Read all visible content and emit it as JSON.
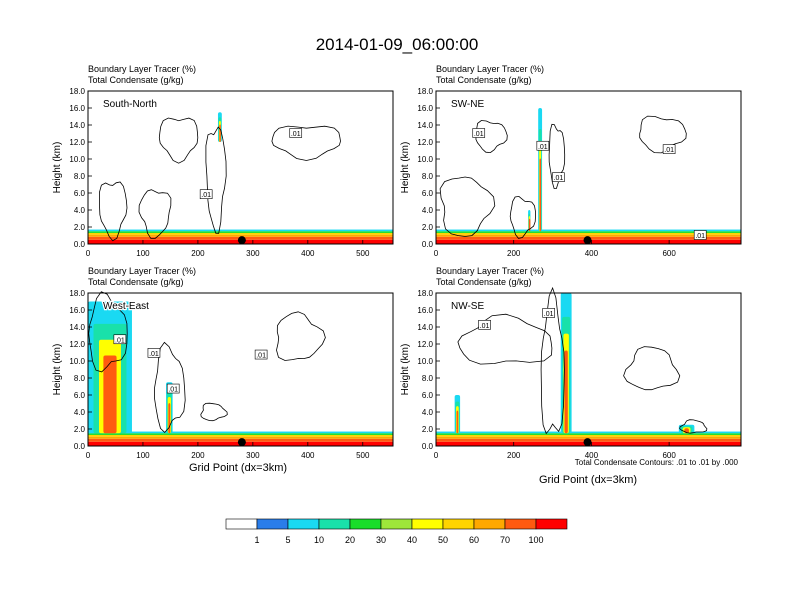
{
  "title": "2014-01-09_06:00:00",
  "shared": {
    "header_line1": "Boundary Layer Tracer    (%)",
    "header_line2": "Total Condensate    (g/kg)",
    "ylabel": "Height (km)",
    "xlabel": "Grid Point (dx=3km)",
    "contour_note": "Total Condensate Contours: .01 to .01 by .000",
    "contour_label": ".01"
  },
  "colors": {
    "bins": [
      "#ffffff",
      "#2a7dea",
      "#1ad9f2",
      "#19e1aa",
      "#19dd2a",
      "#9ee63a",
      "#ffff00",
      "#ffd400",
      "#ffa800",
      "#ff5a10",
      "#ff0000"
    ],
    "contour": "#000000",
    "marker": "#000000"
  },
  "colorbar": {
    "labels": [
      "1",
      "5",
      "10",
      "20",
      "30",
      "40",
      "50",
      "60",
      "70",
      "100"
    ]
  },
  "chart_data": [
    {
      "type": "heatmap",
      "panel": "South-North",
      "xlabel": "",
      "ylabel": "Height (km)",
      "xlim": [
        0,
        555
      ],
      "ylim": [
        0,
        18
      ],
      "xticks": [
        0,
        100,
        200,
        300,
        400,
        500
      ],
      "yticks": [
        0.0,
        2.0,
        4.0,
        6.0,
        8.0,
        10.0,
        12.0,
        14.0,
        16.0,
        18.0
      ],
      "marker_x": 280,
      "layer_top_km": 1.7,
      "plumes": [
        {
          "x": 240,
          "width": 7,
          "bottom": 12.0,
          "top": 15.5
        }
      ],
      "cloud_contours": [
        {
          "x0": 20,
          "x1": 70,
          "y0": 1.0,
          "y1": 7.5
        },
        {
          "x0": 95,
          "x1": 150,
          "y0": 1.0,
          "y1": 6.5
        },
        {
          "x0": 130,
          "x1": 200,
          "y0": 10.0,
          "y1": 15.0
        },
        {
          "x0": 215,
          "x1": 250,
          "y0": 2.0,
          "y1": 14.0
        },
        {
          "x0": 335,
          "x1": 460,
          "y0": 10.2,
          "y1": 14.0
        }
      ],
      "contour_label_positions": [
        [
          215,
          5.8
        ],
        [
          378,
          13.0
        ]
      ]
    },
    {
      "type": "heatmap",
      "panel": "SW-NE",
      "xlabel": "",
      "ylabel": "Height (km)",
      "xlim": [
        0,
        785
      ],
      "ylim": [
        0,
        18
      ],
      "xticks": [
        0,
        200,
        400,
        600
      ],
      "yticks": [
        0.0,
        2.0,
        4.0,
        6.0,
        8.0,
        10.0,
        12.0,
        14.0,
        16.0,
        18.0
      ],
      "marker_x": 390,
      "layer_top_km": 1.7,
      "plumes": [
        {
          "x": 268,
          "width": 10,
          "bottom": 1.5,
          "top": 16.0
        },
        {
          "x": 240,
          "width": 6,
          "bottom": 1.5,
          "top": 4.0
        }
      ],
      "cloud_contours": [
        {
          "x0": 10,
          "x1": 140,
          "y0": 1.0,
          "y1": 8.0
        },
        {
          "x0": 100,
          "x1": 180,
          "y0": 11.0,
          "y1": 14.5
        },
        {
          "x0": 190,
          "x1": 255,
          "y0": 1.0,
          "y1": 5.5
        },
        {
          "x0": 290,
          "x1": 330,
          "y0": 7.0,
          "y1": 14.0
        },
        {
          "x0": 520,
          "x1": 640,
          "y0": 11.0,
          "y1": 15.0
        }
      ],
      "contour_label_positions": [
        [
          110,
          13.0
        ],
        [
          275,
          11.5
        ],
        [
          315,
          7.8
        ],
        [
          600,
          11.1
        ],
        [
          680,
          1.0
        ]
      ]
    },
    {
      "type": "heatmap",
      "panel": "West-East",
      "xlabel": "Grid Point (dx=3km)",
      "ylabel": "Height (km)",
      "xlim": [
        0,
        555
      ],
      "ylim": [
        0,
        18
      ],
      "xticks": [
        0,
        100,
        200,
        300,
        400,
        500
      ],
      "yticks": [
        0.0,
        2.0,
        4.0,
        6.0,
        8.0,
        10.0,
        12.0,
        14.0,
        16.0,
        18.0
      ],
      "marker_x": 280,
      "layer_top_km": 1.7,
      "plumes": [
        {
          "x": 40,
          "width": 80,
          "bottom": 1.5,
          "top": 17.0
        },
        {
          "x": 148,
          "width": 12,
          "bottom": 1.5,
          "top": 7.5
        }
      ],
      "cloud_contours": [
        {
          "x0": 0,
          "x1": 70,
          "y0": 9.0,
          "y1": 17.5
        },
        {
          "x0": 120,
          "x1": 175,
          "y0": 2.0,
          "y1": 11.5
        },
        {
          "x0": 205,
          "x1": 250,
          "y0": 3.0,
          "y1": 5.0
        },
        {
          "x0": 340,
          "x1": 425,
          "y0": 10.0,
          "y1": 15.5
        }
      ],
      "contour_label_positions": [
        [
          58,
          12.5
        ],
        [
          120,
          10.9
        ],
        [
          155,
          6.7
        ],
        [
          315,
          10.7
        ]
      ]
    },
    {
      "type": "heatmap",
      "panel": "NW-SE",
      "xlabel": "Grid Point (dx=3km)",
      "ylabel": "Height (km)",
      "xlim": [
        0,
        785
      ],
      "ylim": [
        0,
        18
      ],
      "xticks": [
        0,
        200,
        400,
        600
      ],
      "yticks": [
        0.0,
        2.0,
        4.0,
        6.0,
        8.0,
        10.0,
        12.0,
        14.0,
        16.0,
        18.0
      ],
      "marker_x": 390,
      "layer_top_km": 1.7,
      "plumes": [
        {
          "x": 335,
          "width": 28,
          "bottom": 1.5,
          "top": 18.0
        },
        {
          "x": 55,
          "width": 14,
          "bottom": 1.5,
          "top": 6.0
        },
        {
          "x": 645,
          "width": 40,
          "bottom": 1.5,
          "top": 2.5
        }
      ],
      "cloud_contours": [
        {
          "x0": 60,
          "x1": 300,
          "y0": 9.5,
          "y1": 15.0
        },
        {
          "x0": 270,
          "x1": 330,
          "y0": 1.0,
          "y1": 17.0
        },
        {
          "x0": 490,
          "x1": 620,
          "y0": 6.5,
          "y1": 11.5
        },
        {
          "x0": 630,
          "x1": 695,
          "y0": 1.5,
          "y1": 3.0
        }
      ],
      "contour_label_positions": [
        [
          125,
          14.2
        ],
        [
          290,
          15.6
        ]
      ]
    }
  ]
}
